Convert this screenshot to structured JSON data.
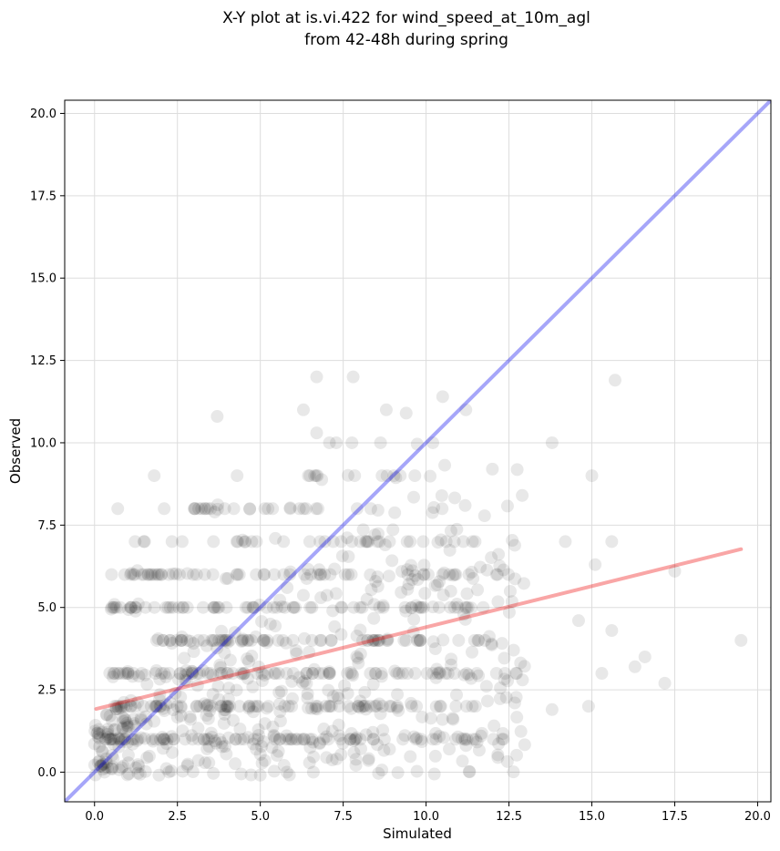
{
  "chart_data": {
    "type": "scatter",
    "title": "X-Y plot at is.vi.422 for wind_speed_at_10m_agl",
    "subtitle": "from 42-48h during spring",
    "xlabel": "Simulated",
    "ylabel": "Observed",
    "xlim": [
      -0.9,
      20.4
    ],
    "ylim": [
      -0.9,
      20.4
    ],
    "xticks": [
      0.0,
      2.5,
      5.0,
      7.5,
      10.0,
      12.5,
      15.0,
      17.5,
      20.0
    ],
    "yticks": [
      0.0,
      2.5,
      5.0,
      7.5,
      10.0,
      12.5,
      15.0,
      17.5,
      20.0
    ],
    "xtick_labels": [
      "0.0",
      "2.5",
      "5.0",
      "7.5",
      "10.0",
      "12.5",
      "15.0",
      "17.5",
      "20.0"
    ],
    "ytick_labels": [
      "0.0",
      "2.5",
      "5.0",
      "7.5",
      "10.0",
      "12.5",
      "15.0",
      "17.5",
      "20.0"
    ],
    "grid": true,
    "colors": {
      "points": "#000000",
      "identity_line": "#0000ee",
      "fit_line": "#ee0000"
    },
    "identity_line": {
      "x": [
        -0.9,
        20.4
      ],
      "y": [
        -0.9,
        20.4
      ]
    },
    "fit_line": {
      "x": [
        0.05,
        19.5
      ],
      "y": [
        1.92,
        6.77
      ]
    },
    "outliers": [
      {
        "x": 19.5,
        "y": 4.0
      },
      {
        "x": 17.5,
        "y": 6.1
      },
      {
        "x": 17.2,
        "y": 2.7
      },
      {
        "x": 16.6,
        "y": 3.5
      },
      {
        "x": 16.3,
        "y": 3.2
      },
      {
        "x": 15.7,
        "y": 11.9
      },
      {
        "x": 15.6,
        "y": 7.0
      },
      {
        "x": 15.6,
        "y": 4.3
      },
      {
        "x": 15.0,
        "y": 9.0
      },
      {
        "x": 15.1,
        "y": 6.3
      },
      {
        "x": 14.9,
        "y": 2.0
      },
      {
        "x": 15.3,
        "y": 3.0
      },
      {
        "x": 14.6,
        "y": 4.6
      },
      {
        "x": 14.2,
        "y": 7.0
      },
      {
        "x": 13.8,
        "y": 10.0
      },
      {
        "x": 13.8,
        "y": 1.9
      },
      {
        "x": 6.7,
        "y": 12.0
      },
      {
        "x": 7.8,
        "y": 12.0
      },
      {
        "x": 10.5,
        "y": 11.4
      },
      {
        "x": 6.3,
        "y": 11.0
      },
      {
        "x": 8.8,
        "y": 11.0
      },
      {
        "x": 11.2,
        "y": 11.0
      },
      {
        "x": 9.4,
        "y": 10.9
      },
      {
        "x": 6.7,
        "y": 10.3
      },
      {
        "x": 3.7,
        "y": 10.8
      },
      {
        "x": 1.8,
        "y": 9.0
      },
      {
        "x": 4.3,
        "y": 9.0
      },
      {
        "x": 12.0,
        "y": 9.2
      },
      {
        "x": 12.9,
        "y": 8.4
      },
      {
        "x": 0.7,
        "y": 8.0
      },
      {
        "x": 2.1,
        "y": 8.0
      },
      {
        "x": 6.6,
        "y": 0.0
      },
      {
        "x": 5.8,
        "y": 0.0
      },
      {
        "x": 7.3,
        "y": 0.4
      },
      {
        "x": 10.7,
        "y": 0.7
      },
      {
        "x": 0.3,
        "y": 0.0
      }
    ],
    "clusters": [
      {
        "x": [
          0.3,
          12.5
        ],
        "y": 1.0,
        "n": 90
      },
      {
        "x": [
          0.5,
          11.5
        ],
        "y": 2.0,
        "n": 85
      },
      {
        "x": [
          0.3,
          12.8
        ],
        "y": 3.0,
        "n": 90
      },
      {
        "x": [
          1.8,
          12.0
        ],
        "y": 4.0,
        "n": 75
      },
      {
        "x": [
          0.5,
          11.8
        ],
        "y": 5.0,
        "n": 70
      },
      {
        "x": [
          0.5,
          12.5
        ],
        "y": 6.0,
        "n": 65
      },
      {
        "x": [
          1.0,
          11.5
        ],
        "y": 7.0,
        "n": 40
      },
      {
        "x": [
          3.0,
          10.5
        ],
        "y": 8.0,
        "n": 30
      },
      {
        "x": [
          6.0,
          10.5
        ],
        "y": 9.0,
        "n": 15
      },
      {
        "x": [
          7.0,
          12.0
        ],
        "y": 10.0,
        "n": 6
      }
    ],
    "scatter_fill": {
      "x": [
        0.0,
        13.0
      ],
      "y": [
        -0.1,
        9.5
      ],
      "n": 420
    }
  }
}
